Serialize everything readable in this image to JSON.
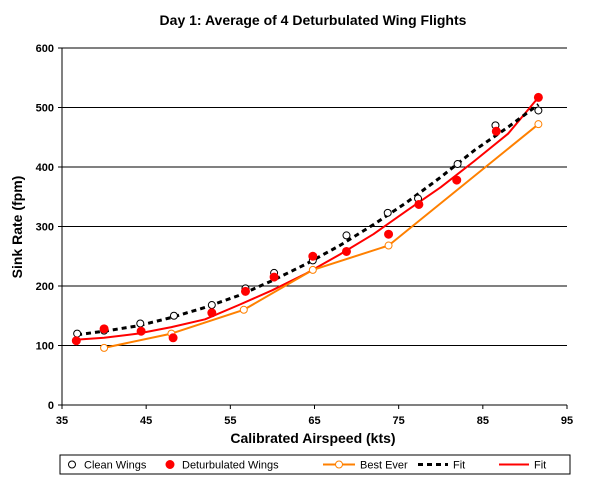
{
  "chart_data": {
    "type": "scatter",
    "title": "Day 1: Average of 4 Deturbulated Wing Flights",
    "xlabel": "Calibrated Airspeed (kts)",
    "ylabel": "Sink Rate (fpm)",
    "xlim": [
      35,
      95
    ],
    "ylim": [
      0,
      600
    ],
    "x_ticks": [
      35,
      45,
      55,
      65,
      75,
      85,
      95
    ],
    "y_ticks": [
      0,
      100,
      200,
      300,
      400,
      500,
      600
    ],
    "grid": "horizontal",
    "legend_position": "bottom",
    "series": [
      {
        "name": "Clean Wings",
        "kind": "scatter",
        "marker": "open-circle",
        "color": "#000000",
        "points": [
          [
            36.8,
            120
          ],
          [
            40,
            125
          ],
          [
            44.3,
            137
          ],
          [
            48.3,
            150
          ],
          [
            52.8,
            168
          ],
          [
            56.8,
            196
          ],
          [
            60.2,
            222
          ],
          [
            64.8,
            243
          ],
          [
            68.8,
            285
          ],
          [
            73.7,
            323
          ],
          [
            77.3,
            347
          ],
          [
            82,
            405
          ],
          [
            86.5,
            470
          ],
          [
            91.6,
            495
          ]
        ]
      },
      {
        "name": "Deturbulated Wings",
        "kind": "scatter",
        "marker": "filled-circle",
        "color": "#ff0000",
        "points": [
          [
            36.7,
            108
          ],
          [
            40,
            128
          ],
          [
            44.4,
            124
          ],
          [
            48.2,
            113
          ],
          [
            52.8,
            155
          ],
          [
            56.8,
            191
          ],
          [
            60.2,
            215
          ],
          [
            64.8,
            250
          ],
          [
            68.8,
            258
          ],
          [
            73.8,
            287
          ],
          [
            77.4,
            337
          ],
          [
            81.9,
            378
          ],
          [
            86.6,
            460
          ],
          [
            91.6,
            517
          ]
        ]
      },
      {
        "name": "Best Ever",
        "kind": "line-markers",
        "marker": "open-circle",
        "color": "#ff8000",
        "points": [
          [
            40,
            96
          ],
          [
            48,
            120
          ],
          [
            56.6,
            160
          ],
          [
            64.8,
            227
          ],
          [
            73.8,
            268
          ],
          [
            91.6,
            472
          ]
        ]
      },
      {
        "name": "Fit",
        "kind": "line",
        "dash": true,
        "color": "#000000",
        "points": [
          [
            36.8,
            118
          ],
          [
            40,
            124
          ],
          [
            44,
            133
          ],
          [
            48,
            147
          ],
          [
            52,
            164
          ],
          [
            56,
            184
          ],
          [
            60,
            209
          ],
          [
            64,
            237
          ],
          [
            68,
            268
          ],
          [
            72,
            303
          ],
          [
            76,
            341
          ],
          [
            80,
            383
          ],
          [
            84,
            428
          ],
          [
            88,
            467
          ],
          [
            91.6,
            505
          ]
        ]
      },
      {
        "name": "Fit",
        "kind": "line",
        "dash": false,
        "color": "#ff0000",
        "points": [
          [
            36.8,
            110
          ],
          [
            40,
            113
          ],
          [
            44,
            120
          ],
          [
            48,
            131
          ],
          [
            52,
            144
          ],
          [
            56,
            168
          ],
          [
            60,
            193
          ],
          [
            64,
            221
          ],
          [
            68,
            253
          ],
          [
            72,
            287
          ],
          [
            76,
            327
          ],
          [
            80,
            366
          ],
          [
            84,
            410
          ],
          [
            88,
            456
          ],
          [
            91.6,
            517
          ]
        ]
      }
    ]
  }
}
